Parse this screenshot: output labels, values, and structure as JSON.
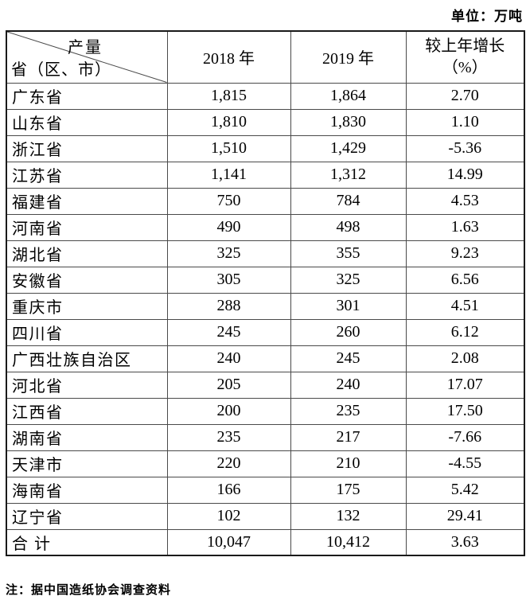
{
  "meta": {
    "unit_label": "单位：万吨",
    "note": "注：据中国造纸协会调查资料"
  },
  "colors": {
    "background": "#ffffff",
    "text": "#000000",
    "grid_line": "#4a4a4a",
    "outer_border": "#1a1a1a"
  },
  "table": {
    "corner": {
      "top": "产量",
      "bottom": "省（区、市）"
    },
    "columns": [
      "2018 年",
      "2019 年"
    ],
    "growth_header": {
      "line1": "较上年增长",
      "line2": "（%）"
    },
    "rows": [
      {
        "province": "广东省",
        "y2018": "1,815",
        "y2019": "1,864",
        "growth": "2.70"
      },
      {
        "province": "山东省",
        "y2018": "1,810",
        "y2019": "1,830",
        "growth": "1.10"
      },
      {
        "province": "浙江省",
        "y2018": "1,510",
        "y2019": "1,429",
        "growth": "-5.36"
      },
      {
        "province": "江苏省",
        "y2018": "1,141",
        "y2019": "1,312",
        "growth": "14.99"
      },
      {
        "province": "福建省",
        "y2018": "750",
        "y2019": "784",
        "growth": "4.53"
      },
      {
        "province": "河南省",
        "y2018": "490",
        "y2019": "498",
        "growth": "1.63"
      },
      {
        "province": "湖北省",
        "y2018": "325",
        "y2019": "355",
        "growth": "9.23"
      },
      {
        "province": "安徽省",
        "y2018": "305",
        "y2019": "325",
        "growth": "6.56"
      },
      {
        "province": "重庆市",
        "y2018": "288",
        "y2019": "301",
        "growth": "4.51"
      },
      {
        "province": "四川省",
        "y2018": "245",
        "y2019": "260",
        "growth": "6.12"
      },
      {
        "province": "广西壮族自治区",
        "y2018": "240",
        "y2019": "245",
        "growth": "2.08"
      },
      {
        "province": "河北省",
        "y2018": "205",
        "y2019": "240",
        "growth": "17.07"
      },
      {
        "province": "江西省",
        "y2018": "200",
        "y2019": "235",
        "growth": "17.50"
      },
      {
        "province": "湖南省",
        "y2018": "235",
        "y2019": "217",
        "growth": "-7.66"
      },
      {
        "province": "天津市",
        "y2018": "220",
        "y2019": "210",
        "growth": "-4.55"
      },
      {
        "province": "海南省",
        "y2018": "166",
        "y2019": "175",
        "growth": "5.42"
      },
      {
        "province": "辽宁省",
        "y2018": "102",
        "y2019": "132",
        "growth": "29.41"
      },
      {
        "province": "合 计",
        "y2018": "10,047",
        "y2019": "10,412",
        "growth": "3.63"
      }
    ]
  }
}
